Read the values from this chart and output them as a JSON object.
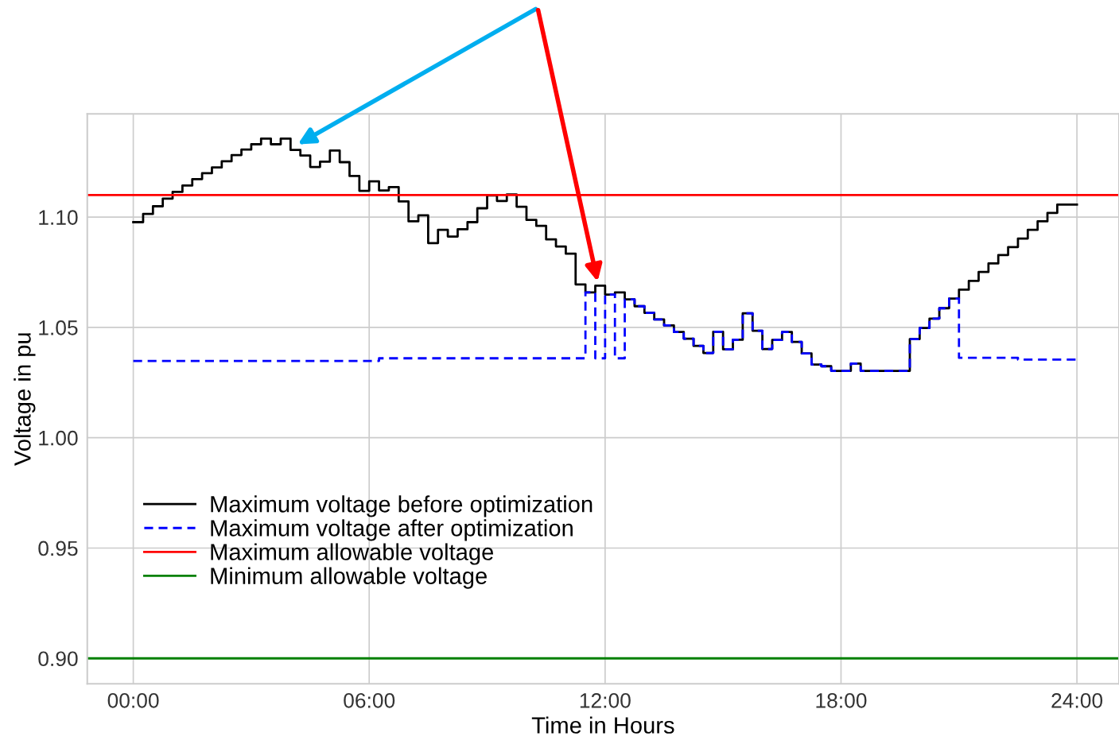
{
  "chart_data": {
    "type": "step",
    "xlabel": "Time in Hours",
    "ylabel": "Voltage in pu",
    "x": [
      0,
      0.25,
      0.5,
      0.75,
      1,
      1.25,
      1.5,
      1.75,
      2,
      2.25,
      2.5,
      2.75,
      3,
      3.25,
      3.5,
      3.75,
      4,
      4.25,
      4.5,
      4.75,
      5,
      5.25,
      5.5,
      5.75,
      6,
      6.25,
      6.5,
      6.75,
      7,
      7.25,
      7.5,
      7.75,
      8,
      8.25,
      8.5,
      8.75,
      9,
      9.25,
      9.5,
      9.75,
      10,
      10.25,
      10.5,
      10.75,
      11,
      11.25,
      11.5,
      11.75,
      12,
      12.25,
      12.5,
      12.75,
      13,
      13.25,
      13.5,
      13.75,
      14,
      14.25,
      14.5,
      14.75,
      15,
      15.25,
      15.5,
      15.75,
      16,
      16.25,
      16.5,
      16.75,
      17,
      17.25,
      17.5,
      17.75,
      18,
      18.25,
      18.5,
      18.75,
      19,
      19.25,
      19.5,
      19.75,
      20,
      20.25,
      20.5,
      20.75,
      21,
      21.25,
      21.5,
      21.75,
      22,
      22.25,
      22.5,
      22.75,
      23,
      23.25,
      23.5,
      23.75,
      24
    ],
    "series": [
      {
        "name": "Maximum voltage before optimization",
        "color": "#000000",
        "line_style": "solid",
        "values": [
          1.0977,
          1.1014,
          1.1049,
          1.1084,
          1.1114,
          1.1143,
          1.1172,
          1.1199,
          1.1225,
          1.1253,
          1.1281,
          1.1306,
          1.133,
          1.1356,
          1.133,
          1.1356,
          1.1304,
          1.1279,
          1.1227,
          1.1251,
          1.1302,
          1.1249,
          1.1186,
          1.1119,
          1.1162,
          1.1121,
          1.1136,
          1.1071,
          1.0981,
          1.1008,
          1.0882,
          1.0942,
          1.0912,
          1.0945,
          1.0977,
          1.104,
          1.1098,
          1.1073,
          1.1103,
          1.1047,
          1.0987,
          1.096,
          1.0899,
          1.0867,
          1.0834,
          1.0695,
          1.0659,
          1.0689,
          1.0649,
          1.0659,
          1.0627,
          1.0596,
          1.0566,
          1.0536,
          1.0509,
          1.0479,
          1.0449,
          1.0416,
          1.0384,
          1.048,
          1.0401,
          1.0444,
          1.0564,
          1.0485,
          1.0402,
          1.0443,
          1.0479,
          1.0434,
          1.0382,
          1.0332,
          1.0324,
          1.0303,
          1.0303,
          1.0336,
          1.0303,
          1.0303,
          1.0303,
          1.0303,
          1.0303,
          1.0447,
          1.0497,
          1.054,
          1.0587,
          1.0631,
          1.0671,
          1.0711,
          1.0751,
          1.079,
          1.0828,
          1.0864,
          1.0903,
          1.0942,
          1.0981,
          1.1019,
          1.1057,
          1.1057,
          1.1057
        ]
      },
      {
        "name": "Maximum voltage after optimization",
        "color": "#0000ff",
        "line_style": "dashed",
        "values": [
          1.0348,
          1.0348,
          1.0348,
          1.0348,
          1.0348,
          1.0348,
          1.0348,
          1.0348,
          1.0348,
          1.0348,
          1.0348,
          1.0348,
          1.0348,
          1.0348,
          1.0348,
          1.0348,
          1.0348,
          1.0348,
          1.0348,
          1.0348,
          1.0348,
          1.0348,
          1.0348,
          1.0348,
          1.0348,
          1.036,
          1.036,
          1.036,
          1.036,
          1.036,
          1.036,
          1.036,
          1.036,
          1.036,
          1.036,
          1.036,
          1.036,
          1.036,
          1.036,
          1.036,
          1.036,
          1.036,
          1.036,
          1.036,
          1.036,
          1.036,
          1.0659,
          1.036,
          1.0649,
          1.036,
          1.0627,
          1.0596,
          1.0566,
          1.0536,
          1.0509,
          1.0479,
          1.0449,
          1.0416,
          1.0384,
          1.048,
          1.0401,
          1.0444,
          1.0564,
          1.0485,
          1.0402,
          1.0443,
          1.0479,
          1.0434,
          1.0382,
          1.0332,
          1.0324,
          1.0303,
          1.0303,
          1.0336,
          1.0303,
          1.0303,
          1.0303,
          1.0303,
          1.0303,
          1.0447,
          1.0497,
          1.054,
          1.0587,
          1.0631,
          1.0362,
          1.0362,
          1.0362,
          1.0362,
          1.0362,
          1.0362,
          1.0354,
          1.0354,
          1.0354,
          1.0354,
          1.0354,
          1.0354,
          1.0354
        ]
      }
    ],
    "ref_lines": [
      {
        "axis": "y",
        "value": 1.11,
        "label": "Maximum allowable voltage",
        "color": "#ff0000",
        "line_style": "solid"
      },
      {
        "axis": "y",
        "value": 0.9,
        "label": "Minimum allowable voltage",
        "color": "#008000",
        "line_style": "solid"
      }
    ],
    "xlim": [
      -1.17,
      25.07
    ],
    "xticks": [
      {
        "value": 0,
        "label": "00:00"
      },
      {
        "value": 6,
        "label": "06:00"
      },
      {
        "value": 12,
        "label": "12:00"
      },
      {
        "value": 18,
        "label": "18:00"
      },
      {
        "value": 24,
        "label": "24:00"
      }
    ],
    "ylim": [
      0.8885,
      1.1468
    ],
    "yticks": [
      {
        "value": 0.9,
        "label": "0.90"
      },
      {
        "value": 0.95,
        "label": "0.95"
      },
      {
        "value": 1.0,
        "label": "1.00"
      },
      {
        "value": 1.05,
        "label": "1.05"
      },
      {
        "value": 1.1,
        "label": "1.10"
      }
    ],
    "grid": true,
    "legend": "bottom left"
  }
}
